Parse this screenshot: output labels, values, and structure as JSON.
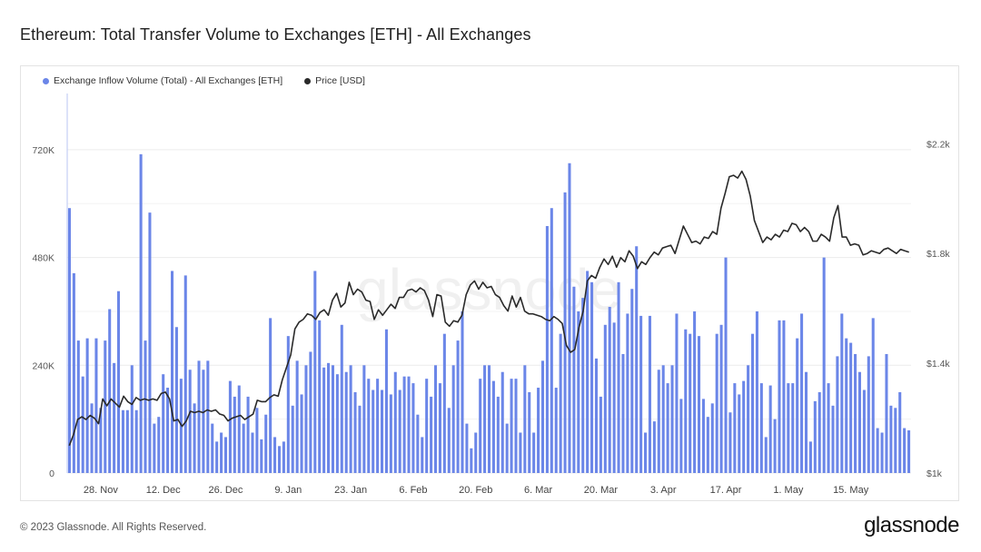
{
  "title": "Ethereum: Total Transfer Volume to Exchanges [ETH] - All Exchanges",
  "footer": "© 2023 Glassnode. All Rights Reserved.",
  "brand": "glassnode",
  "watermark": "glassnode",
  "colors": {
    "bar": "#6b86e8",
    "line": "#2a2a2a",
    "grid": "#ececec"
  },
  "chart_data": {
    "type": "bar",
    "legend_position": "top-left",
    "legend": [
      {
        "name": "Exchange Inflow Volume (Total) - All Exchanges [ETH]",
        "color": "#6b86e8",
        "marker": "dot"
      },
      {
        "name": "Price [USD]",
        "color": "#2a2a2a",
        "marker": "dot"
      }
    ],
    "y_left": {
      "ticks": [
        0,
        240000,
        480000,
        720000
      ],
      "tick_labels": [
        "0",
        "240K",
        "480K",
        "720K"
      ],
      "range": [
        0,
        825000
      ]
    },
    "y_right": {
      "ticks": [
        1000,
        1400,
        1800,
        2200
      ],
      "tick_labels": [
        "$1k",
        "$1.4k",
        "$1.8k",
        "$2.2k"
      ],
      "range": [
        1000,
        2350
      ]
    },
    "x_labels": [
      "28. Nov",
      "12. Dec",
      "26. Dec",
      "9. Jan",
      "23. Jan",
      "6. Feb",
      "20. Feb",
      "6. Mar",
      "20. Mar",
      "3. Apr",
      "17. Apr",
      "1. May",
      "15. May"
    ],
    "x_label_day_index": [
      7,
      21,
      35,
      49,
      63,
      77,
      91,
      105,
      119,
      133,
      147,
      161,
      175
    ],
    "start_date": "2022-11-21",
    "series": [
      {
        "name": "Exchange Inflow Volume (Total) - All Exchanges [ETH]",
        "type": "bar",
        "axis": "left",
        "values": [
          590000,
          445000,
          295000,
          215000,
          300000,
          155000,
          300000,
          145000,
          295000,
          365000,
          245000,
          405000,
          140000,
          140000,
          240000,
          140000,
          710000,
          295000,
          580000,
          110000,
          125000,
          220000,
          190000,
          450000,
          325000,
          210000,
          440000,
          230000,
          155000,
          250000,
          230000,
          250000,
          110000,
          70000,
          90000,
          80000,
          205000,
          170000,
          195000,
          110000,
          170000,
          90000,
          145000,
          75000,
          130000,
          345000,
          80000,
          60000,
          70000,
          305000,
          150000,
          250000,
          175000,
          240000,
          270000,
          450000,
          340000,
          235000,
          245000,
          240000,
          220000,
          330000,
          225000,
          240000,
          180000,
          150000,
          240000,
          210000,
          185000,
          210000,
          185000,
          320000,
          175000,
          225000,
          185000,
          215000,
          215000,
          200000,
          130000,
          80000,
          210000,
          170000,
          240000,
          200000,
          310000,
          145000,
          240000,
          295000,
          360000,
          110000,
          55000,
          90000,
          210000,
          240000,
          240000,
          205000,
          170000,
          225000,
          110000,
          210000,
          210000,
          90000,
          240000,
          180000,
          90000,
          190000,
          250000,
          550000,
          590000,
          190000,
          310000,
          625000,
          690000,
          415000,
          360000,
          390000,
          450000,
          425000,
          255000,
          170000,
          330000,
          370000,
          335000,
          425000,
          265000,
          355000,
          410000,
          505000,
          350000,
          90000,
          350000,
          115000,
          230000,
          240000,
          200000,
          240000,
          355000,
          165000,
          320000,
          310000,
          360000,
          305000,
          165000,
          125000,
          155000,
          310000,
          330000,
          480000,
          135000,
          200000,
          175000,
          205000,
          240000,
          310000,
          360000,
          200000,
          80000,
          195000,
          120000,
          340000,
          340000,
          200000,
          200000,
          300000,
          355000,
          225000,
          70000,
          160000,
          180000,
          480000,
          200000,
          150000,
          260000,
          355000,
          300000,
          290000,
          265000,
          225000,
          185000,
          260000,
          345000,
          100000,
          90000,
          265000,
          150000,
          145000,
          180000,
          100000,
          95000
        ]
      },
      {
        "name": "Price [USD]",
        "type": "line",
        "axis": "right",
        "values": [
          1100,
          1140,
          1195,
          1205,
          1195,
          1210,
          1200,
          1180,
          1270,
          1245,
          1270,
          1255,
          1240,
          1280,
          1260,
          1250,
          1275,
          1265,
          1270,
          1265,
          1270,
          1265,
          1290,
          1295,
          1270,
          1190,
          1195,
          1170,
          1190,
          1225,
          1220,
          1225,
          1220,
          1230,
          1225,
          1230,
          1215,
          1210,
          1190,
          1200,
          1205,
          1210,
          1195,
          1205,
          1215,
          1265,
          1260,
          1260,
          1275,
          1285,
          1280,
          1340,
          1385,
          1430,
          1525,
          1550,
          1560,
          1580,
          1575,
          1560,
          1585,
          1595,
          1575,
          1630,
          1655,
          1605,
          1620,
          1695,
          1650,
          1670,
          1660,
          1630,
          1625,
          1560,
          1595,
          1575,
          1595,
          1615,
          1600,
          1640,
          1640,
          1665,
          1670,
          1660,
          1675,
          1665,
          1630,
          1570,
          1650,
          1645,
          1550,
          1535,
          1555,
          1550,
          1575,
          1650,
          1685,
          1700,
          1670,
          1695,
          1675,
          1680,
          1650,
          1640,
          1610,
          1590,
          1645,
          1605,
          1640,
          1590,
          1580,
          1580,
          1575,
          1570,
          1560,
          1555,
          1570,
          1560,
          1545,
          1465,
          1440,
          1450,
          1530,
          1590,
          1700,
          1720,
          1710,
          1750,
          1780,
          1760,
          1790,
          1750,
          1785,
          1770,
          1810,
          1790,
          1745,
          1770,
          1760,
          1785,
          1805,
          1795,
          1820,
          1825,
          1830,
          1800,
          1850,
          1900,
          1870,
          1840,
          1845,
          1835,
          1860,
          1855,
          1880,
          1870,
          1965,
          2020,
          2080,
          2085,
          2075,
          2100,
          2070,
          2010,
          1920,
          1880,
          1840,
          1860,
          1850,
          1870,
          1860,
          1885,
          1880,
          1910,
          1905,
          1880,
          1895,
          1880,
          1845,
          1845,
          1870,
          1860,
          1845,
          1930,
          1975,
          1860,
          1860,
          1830,
          1835,
          1830,
          1795,
          1800,
          1810,
          1805,
          1800,
          1815,
          1820,
          1810,
          1800,
          1815,
          1810,
          1805
        ]
      }
    ]
  }
}
